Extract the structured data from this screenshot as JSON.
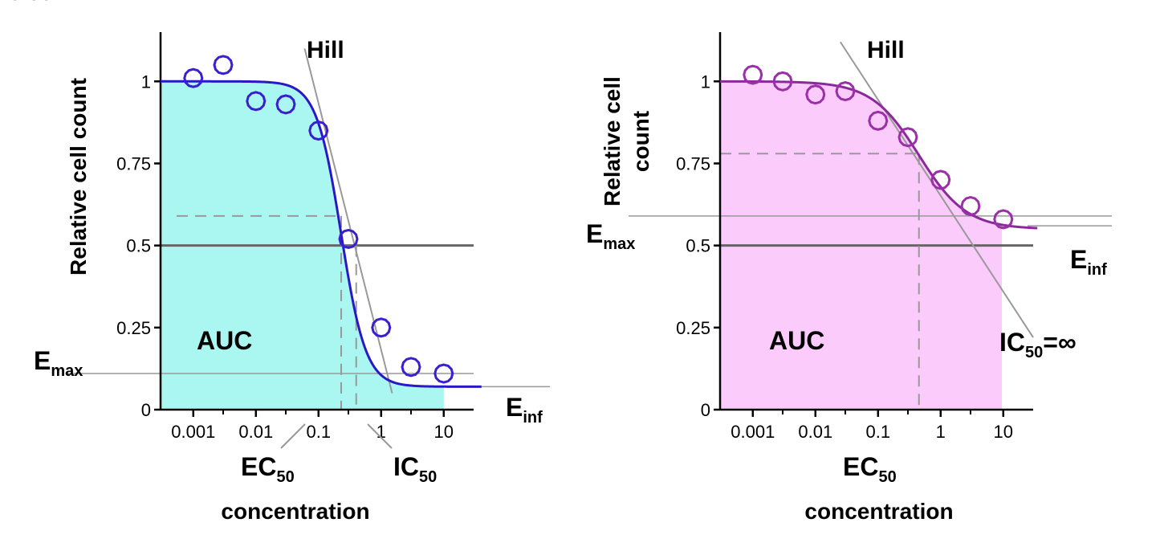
{
  "chart_data": [
    {
      "type": "scatter",
      "title": "",
      "xlabel": "concentration",
      "ylabel": "Relative cell count",
      "x_scale": "log",
      "xlim": [
        0.0003,
        30
      ],
      "ylim": [
        0,
        1.15
      ],
      "x_ticks": [
        0.001,
        0.01,
        0.1,
        1,
        10
      ],
      "x_tick_labels": [
        "0.001",
        "0.01",
        "0.1",
        "1",
        "10"
      ],
      "y_ticks": [
        0,
        0.25,
        0.5,
        0.75,
        1
      ],
      "y_tick_labels": [
        "0",
        "0.25",
        "0.5",
        "0.75",
        "1"
      ],
      "point_color": "#3a1fd0",
      "curve_color": "#2a18c8",
      "fill_color": "#aaf7f2",
      "x": [
        0.001,
        0.003,
        0.01,
        0.03,
        0.1,
        0.3,
        1,
        3,
        10
      ],
      "y": [
        1.01,
        1.05,
        0.94,
        0.93,
        0.85,
        0.52,
        0.25,
        0.13,
        0.11
      ],
      "fit": {
        "einf": 0.07,
        "ec50": 0.23,
        "hill": 2.2
      },
      "auc_fill_to": 10,
      "half_line": 0.5,
      "emax_line": 0.11,
      "einf_line": 0.07,
      "ec50_value": 0.23,
      "ic50_value": 0.4,
      "ec50_y": 0.59,
      "hill_tangent": {
        "from": [
          0.06,
          1.1
        ],
        "to": [
          1.5,
          0.05
        ]
      },
      "annotations": {
        "auc": "AUC",
        "hill": "Hill",
        "emax": {
          "base": "E",
          "sub": "max"
        },
        "einf": {
          "base": "E",
          "sub": "inf"
        },
        "ec50": {
          "base": "EC",
          "sub": "50"
        },
        "ic50": {
          "base": "IC",
          "sub": "50"
        }
      }
    },
    {
      "type": "scatter",
      "title": "",
      "xlabel": "concentration",
      "ylabel": "Relative cell count",
      "ylabel_lines": [
        "Relative cell",
        "count"
      ],
      "x_scale": "log",
      "xlim": [
        0.0003,
        30
      ],
      "ylim": [
        0,
        1.15
      ],
      "x_ticks": [
        0.001,
        0.01,
        0.1,
        1,
        10
      ],
      "x_tick_labels": [
        "0.001",
        "0.01",
        "0.1",
        "1",
        "10"
      ],
      "y_ticks": [
        0,
        0.25,
        0.5,
        0.75,
        1
      ],
      "y_tick_labels": [
        "0",
        "0.25",
        "0.5",
        "0.75",
        "1"
      ],
      "point_color": "#9a2fa8",
      "curve_color": "#8a2a9a",
      "fill_color": "#fbcbfb",
      "x": [
        0.001,
        0.003,
        0.01,
        0.03,
        0.1,
        0.3,
        1,
        3,
        10
      ],
      "y": [
        1.02,
        1.0,
        0.96,
        0.97,
        0.88,
        0.83,
        0.7,
        0.62,
        0.58
      ],
      "fit": {
        "einf": 0.55,
        "ec50": 0.45,
        "hill": 1.15
      },
      "auc_fill_to": 9.5,
      "half_line": 0.5,
      "emax_line": 0.59,
      "einf_line": 0.56,
      "ec50_value": 0.45,
      "ec50_y": 0.78,
      "hill_tangent": {
        "from": [
          0.025,
          1.12
        ],
        "to": [
          30,
          0.22
        ]
      },
      "annotations": {
        "auc": "AUC",
        "hill": "Hill",
        "emax": {
          "base": "E",
          "sub": "max"
        },
        "einf": {
          "base": "E",
          "sub": "inf"
        },
        "ec50": {
          "base": "EC",
          "sub": "50"
        },
        "ic50": {
          "base": "IC",
          "sub": "50",
          "suffix": "=∞"
        }
      }
    }
  ]
}
